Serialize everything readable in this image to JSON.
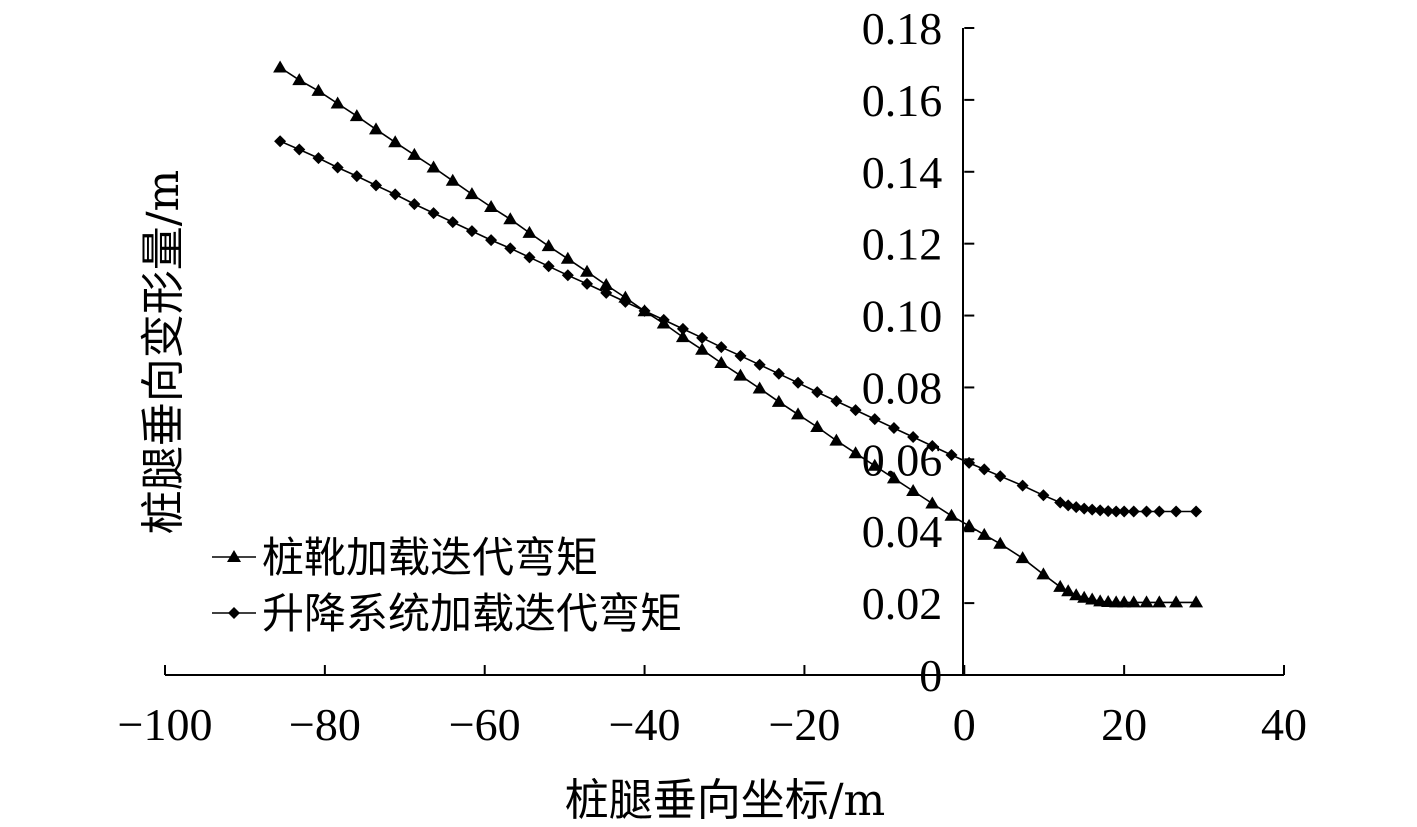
{
  "chart_data": {
    "type": "line",
    "xlabel": "桩腿垂向坐标/m",
    "ylabel": "桩腿垂向变形量/m",
    "xlim": [
      -100,
      40
    ],
    "ylim": [
      0,
      0.18
    ],
    "x_ticks": [
      "−100",
      "−80",
      "−60",
      "−40",
      "−20",
      "0",
      "20",
      "40"
    ],
    "y_ticks": [
      "0",
      "0.02",
      "0.04",
      "0.06",
      "0.08",
      "0.10",
      "0.12",
      "0.14",
      "0.16",
      "0.18"
    ],
    "legend_position": "lower-left",
    "series": [
      {
        "name": "桩靴加载迭代弯矩",
        "marker": "triangle",
        "x": [
          -85.6,
          -83.2,
          -80.8,
          -78.4,
          -76.0,
          -73.6,
          -71.2,
          -68.8,
          -66.4,
          -64.0,
          -61.6,
          -59.2,
          -56.8,
          -54.4,
          -52.0,
          -49.6,
          -47.2,
          -44.8,
          -42.4,
          -40.0,
          -37.6,
          -35.2,
          -32.8,
          -30.4,
          -28.0,
          -25.6,
          -23.2,
          -20.8,
          -18.4,
          -16.0,
          -13.6,
          -11.2,
          -8.8,
          -6.4,
          -4.0,
          -1.6,
          0.6,
          2.5,
          4.5,
          7.3,
          9.9,
          12.0,
          13.0,
          14.0,
          15.0,
          16.0,
          17.0,
          18.0,
          19.0,
          20.0,
          21.2,
          22.8,
          24.4,
          26.5,
          29.0
        ],
        "y": [
          0.169,
          0.1655,
          0.1625,
          0.159,
          0.1555,
          0.1518,
          0.1482,
          0.1447,
          0.1412,
          0.1375,
          0.1338,
          0.1302,
          0.1268,
          0.123,
          0.1193,
          0.1158,
          0.1122,
          0.1085,
          0.105,
          0.1012,
          0.0978,
          0.094,
          0.0905,
          0.0868,
          0.0833,
          0.0797,
          0.076,
          0.0725,
          0.069,
          0.0652,
          0.0617,
          0.0582,
          0.0547,
          0.0512,
          0.0477,
          0.0443,
          0.0415,
          0.039,
          0.0365,
          0.0325,
          0.028,
          0.0245,
          0.0233,
          0.0222,
          0.0215,
          0.021,
          0.0205,
          0.0203,
          0.0202,
          0.0202,
          0.0202,
          0.0202,
          0.0202,
          0.0202,
          0.0202
        ]
      },
      {
        "name": "升降系统加载迭代弯矩",
        "marker": "diamond",
        "x": [
          -85.6,
          -83.2,
          -80.8,
          -78.4,
          -76.0,
          -73.6,
          -71.2,
          -68.8,
          -66.4,
          -64.0,
          -61.6,
          -59.2,
          -56.8,
          -54.4,
          -52.0,
          -49.6,
          -47.2,
          -44.8,
          -42.4,
          -40.0,
          -37.6,
          -35.2,
          -32.8,
          -30.4,
          -28.0,
          -25.6,
          -23.2,
          -20.8,
          -18.4,
          -16.0,
          -13.6,
          -11.2,
          -8.8,
          -6.4,
          -4.0,
          -1.6,
          0.6,
          2.5,
          4.5,
          7.3,
          9.9,
          12.0,
          13.0,
          14.0,
          15.0,
          16.0,
          17.0,
          18.0,
          19.0,
          20.0,
          21.2,
          22.8,
          24.4,
          26.5,
          29.0
        ],
        "y": [
          0.1485,
          0.1462,
          0.1438,
          0.1412,
          0.1388,
          0.1362,
          0.1337,
          0.131,
          0.1285,
          0.126,
          0.1235,
          0.121,
          0.1187,
          0.1162,
          0.1137,
          0.1112,
          0.1088,
          0.1063,
          0.1038,
          0.1013,
          0.0988,
          0.0963,
          0.0938,
          0.0912,
          0.0888,
          0.0863,
          0.0838,
          0.0813,
          0.0787,
          0.0762,
          0.0737,
          0.0712,
          0.0687,
          0.0662,
          0.0637,
          0.0612,
          0.059,
          0.0572,
          0.0553,
          0.0527,
          0.05,
          0.048,
          0.0472,
          0.0467,
          0.0463,
          0.046,
          0.0458,
          0.0456,
          0.0455,
          0.0455,
          0.0455,
          0.0455,
          0.0455,
          0.0455,
          0.0455
        ]
      }
    ]
  }
}
